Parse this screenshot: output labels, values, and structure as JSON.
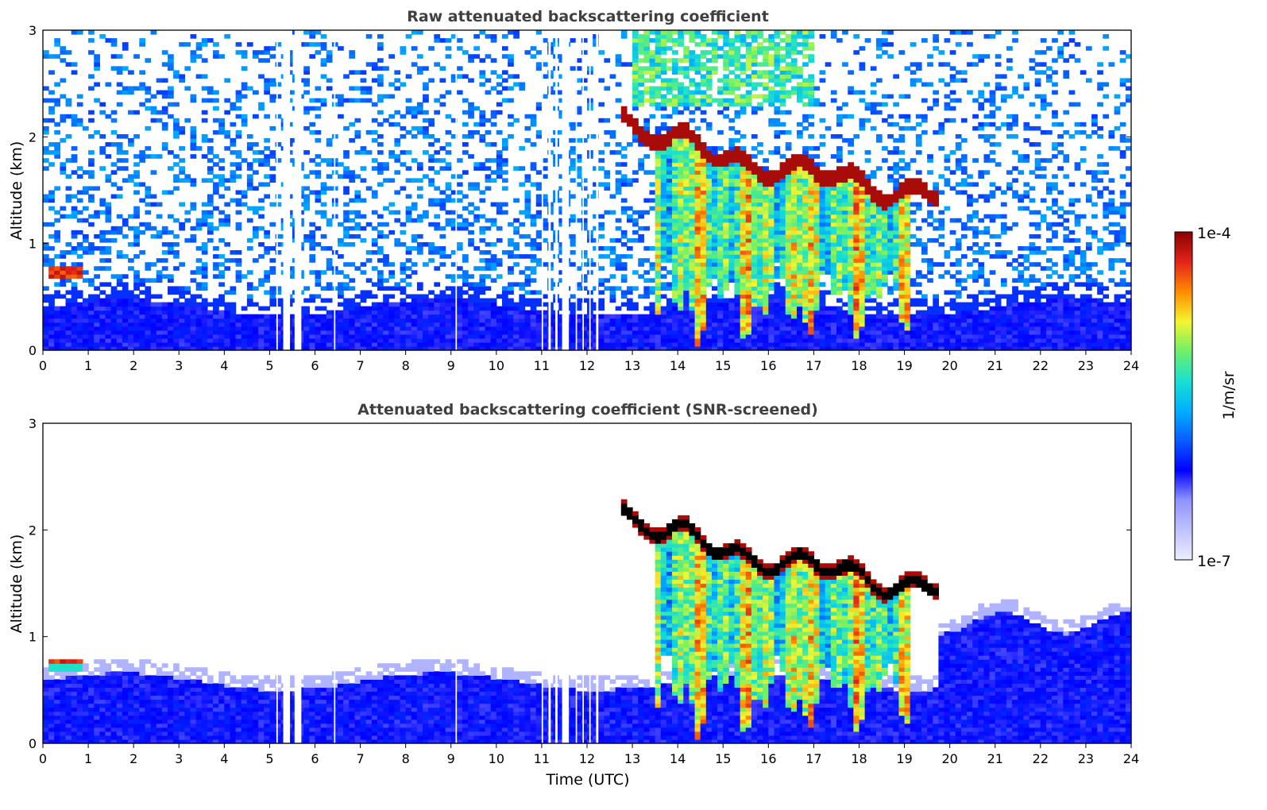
{
  "colormap": {
    "stops": [
      "#ecedff",
      "#bfc2ff",
      "#8f93ff",
      "#0000ff",
      "#0a5cff",
      "#00b0ff",
      "#19e0d0",
      "#6ef06a",
      "#f5f531",
      "#ff8a00",
      "#e2231a",
      "#8b0000"
    ]
  },
  "colorbar": {
    "max_label": "1e-4",
    "min_label": "1e-7",
    "unit_label": "1/m/sr",
    "range": [
      1e-07,
      0.0001
    ],
    "scale": "log"
  },
  "xaxis_label": "Time (UTC)",
  "chart_data": [
    {
      "type": "heatmap",
      "title": "Raw attenuated backscattering coefficient",
      "xlabel": "",
      "ylabel": "Altitude (km)",
      "xlim": [
        0,
        24
      ],
      "ylim": [
        0,
        3
      ],
      "xticks": [
        0,
        1,
        2,
        3,
        4,
        5,
        6,
        7,
        8,
        9,
        10,
        11,
        12,
        13,
        14,
        15,
        16,
        17,
        18,
        19,
        20,
        21,
        22,
        23,
        24
      ],
      "yticks": [
        0,
        1,
        2,
        3
      ],
      "data_gaps_utc": [
        [
          5.15,
          5.18
        ],
        [
          5.3,
          5.45
        ],
        [
          5.55,
          5.7
        ],
        [
          6.42,
          6.45
        ],
        [
          9.1,
          9.13
        ],
        [
          11.0,
          11.03
        ],
        [
          11.15,
          11.2
        ],
        [
          11.3,
          11.35
        ],
        [
          11.45,
          11.6
        ],
        [
          11.75,
          11.78
        ],
        [
          11.9,
          11.93
        ],
        [
          12.05,
          12.08
        ],
        [
          12.2,
          12.25
        ]
      ],
      "features": [
        {
          "name": "boundary_layer_aerosol",
          "t_range": [
            0,
            24
          ],
          "top_km": 0.55,
          "level": 0.3
        },
        {
          "name": "low_cloud_morning",
          "t_range": [
            0.1,
            0.9
          ],
          "alt_km": 0.72,
          "level": 0.95
        },
        {
          "name": "cloud_base_layer",
          "t_range": [
            12.8,
            19.8
          ],
          "alt_km_start": 2.2,
          "alt_km_end": 1.45,
          "level": 1.0
        },
        {
          "name": "virga_precipitation",
          "t_range": [
            13.5,
            19.1
          ],
          "bottom_km": 0.0,
          "level": 0.65
        },
        {
          "name": "solar_background_noise",
          "t_range": [
            13,
            17
          ],
          "alt_km_min": 2.3,
          "level": 0.45
        }
      ]
    },
    {
      "type": "heatmap",
      "title": "Attenuated backscattering coefficient (SNR-screened)",
      "xlabel": "Time (UTC)",
      "ylabel": "Altitude (km)",
      "xlim": [
        0,
        24
      ],
      "ylim": [
        0,
        3
      ],
      "xticks": [
        0,
        1,
        2,
        3,
        4,
        5,
        6,
        7,
        8,
        9,
        10,
        11,
        12,
        13,
        14,
        15,
        16,
        17,
        18,
        19,
        20,
        21,
        22,
        23,
        24
      ],
      "yticks": [
        0,
        1,
        2,
        3
      ],
      "data_gaps_utc": [
        [
          5.15,
          5.18
        ],
        [
          5.3,
          5.45
        ],
        [
          5.55,
          5.7
        ],
        [
          6.42,
          6.45
        ],
        [
          9.1,
          9.13
        ],
        [
          11.0,
          11.03
        ],
        [
          11.15,
          11.2
        ],
        [
          11.3,
          11.35
        ],
        [
          11.45,
          11.6
        ],
        [
          11.75,
          11.78
        ],
        [
          11.9,
          11.93
        ],
        [
          12.05,
          12.08
        ],
        [
          12.2,
          12.25
        ]
      ],
      "features": [
        {
          "name": "boundary_layer_aerosol",
          "t_range": [
            0,
            24
          ],
          "top_km": 0.7,
          "level": 0.3
        },
        {
          "name": "low_cloud_morning",
          "t_range": [
            0.1,
            0.9
          ],
          "alt_km": 0.72,
          "level": 0.95
        },
        {
          "name": "cloud_base_layer_saturated",
          "t_range": [
            12.8,
            19.8
          ],
          "alt_km_start": 2.2,
          "alt_km_end": 1.45,
          "level": 1.0
        },
        {
          "name": "virga_precipitation",
          "t_range": [
            13.5,
            19.1
          ],
          "bottom_km": 0.0,
          "level": 0.65
        },
        {
          "name": "afternoon_aerosol_layer",
          "t_range": [
            19.8,
            24
          ],
          "top_km": 1.25,
          "level": 0.3
        }
      ]
    }
  ]
}
